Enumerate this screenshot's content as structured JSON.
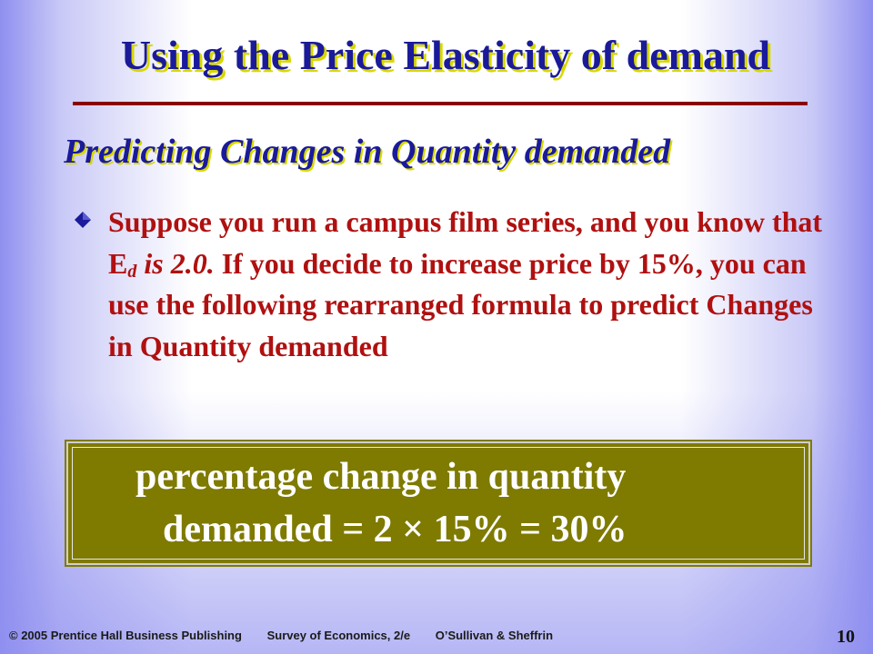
{
  "slide": {
    "title": "Using the Price Elasticity of demand",
    "subtitle": "Predicting Changes in Quantity demanded",
    "bullet": {
      "icon": "diamond-bullet-icon",
      "part1": "Suppose you run a campus film series, and you know that E",
      "subscript": "d",
      "italic_part": " is 2.0.",
      "part2": " If you decide to increase price by 15%, you can use the following rearranged formula to predict Changes in Quantity demanded"
    },
    "formula": {
      "line1": "percentage change in quantity",
      "line2": "demanded = 2 × 15% = 30%"
    },
    "footer": {
      "copyright": "© 2005 Prentice Hall Business Publishing",
      "book": "Survey of Economics, 2/e",
      "authors": "O’Sullivan & Sheffrin"
    },
    "page_number": "10"
  },
  "colors": {
    "title": "#1a1a9a",
    "title_shadow": "#d8d800",
    "rule": "#8b0000",
    "bullet_text": "#b01010",
    "formula_bg": "#7f7a00",
    "formula_text": "#ffffff"
  }
}
